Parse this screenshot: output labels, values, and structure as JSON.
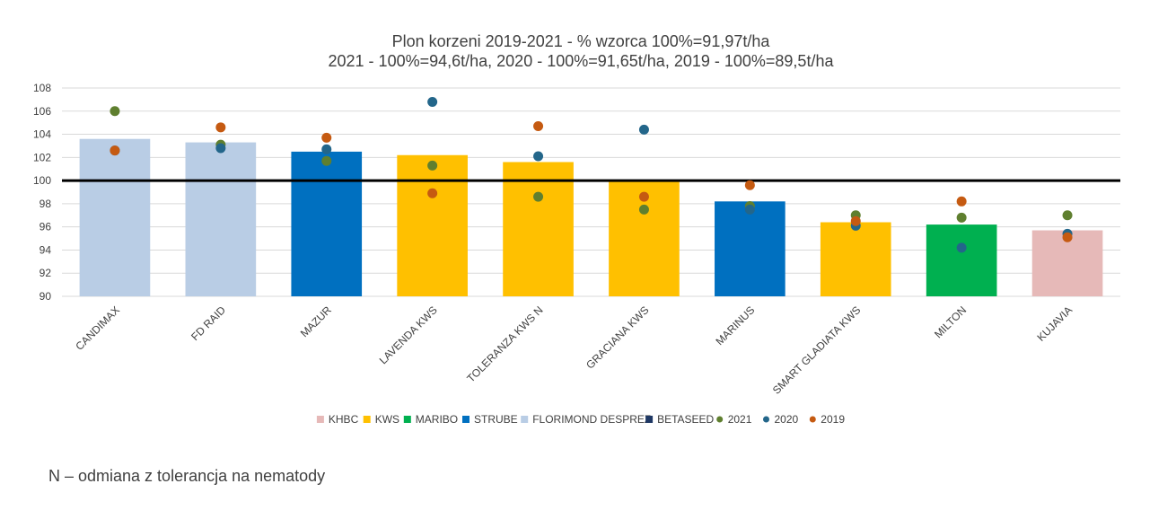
{
  "chart_data": {
    "type": "bar",
    "title_lines": [
      "Plon korzeni 2019-2021 - % wzorca 100%=91,97t/ha",
      "2021 - 100%=94,6t/ha, 2020 - 100%=91,65t/ha, 2019 - 100%=89,5t/ha"
    ],
    "categories": [
      "CANDIMAX",
      "FD RAID",
      "MAZUR",
      "LAVENDA KWS",
      "TOLERANZA KWS N",
      "GRACIANA KWS",
      "MARINUS",
      "SMART GLADIATA KWS",
      "MILTON",
      "KUJAVIA"
    ],
    "bar_values": [
      103.6,
      103.3,
      102.5,
      102.2,
      101.6,
      100.0,
      98.2,
      96.4,
      96.2,
      95.7
    ],
    "bar_breeders": [
      "FLORIMOND DESPREZ",
      "FLORIMOND DESPREZ",
      "STRUBE",
      "KWS",
      "KWS",
      "KWS",
      "STRUBE",
      "KWS",
      "MARIBO",
      "KHBC"
    ],
    "breeder_colors": {
      "KHBC": "#e6b9b8",
      "KWS": "#ffc000",
      "MARIBO": "#00b050",
      "STRUBE": "#0070c0",
      "FLORIMOND DESPREZ": "#b9cde5",
      "BETASEED": "#1f3864"
    },
    "points": [
      {
        "name": "2021",
        "color": "#5f7f2f",
        "values": [
          106.0,
          103.1,
          101.7,
          101.3,
          98.6,
          97.5,
          97.8,
          97.0,
          96.8,
          97.0
        ]
      },
      {
        "name": "2020",
        "color": "#23668a",
        "values": [
          102.6,
          102.8,
          102.7,
          106.8,
          102.1,
          104.4,
          97.5,
          96.1,
          94.2,
          95.4
        ]
      },
      {
        "name": "2019",
        "color": "#c55a11",
        "values": [
          102.6,
          104.6,
          103.7,
          98.9,
          104.7,
          98.6,
          99.6,
          96.5,
          98.2,
          95.1
        ]
      }
    ],
    "reference_line": 100,
    "ylim": [
      90,
      108
    ],
    "yticks": [
      90,
      92,
      94,
      96,
      98,
      100,
      102,
      104,
      106,
      108
    ],
    "grid": true,
    "legend_position": "bottom",
    "legend": [
      {
        "label": "KHBC",
        "color": "#e6b9b8",
        "marker": "square"
      },
      {
        "label": "KWS",
        "color": "#ffc000",
        "marker": "square"
      },
      {
        "label": "MARIBO",
        "color": "#00b050",
        "marker": "square"
      },
      {
        "label": "STRUBE",
        "color": "#0070c0",
        "marker": "square"
      },
      {
        "label": "FLORIMOND DESPREZ",
        "color": "#b9cde5",
        "marker": "square"
      },
      {
        "label": "BETASEED",
        "color": "#1f3864",
        "marker": "square"
      },
      {
        "label": "2021",
        "color": "#5f7f2f",
        "marker": "circle"
      },
      {
        "label": "2020",
        "color": "#23668a",
        "marker": "circle"
      },
      {
        "label": "2019",
        "color": "#c55a11",
        "marker": "circle"
      }
    ]
  },
  "footnote": "N – odmiana z tolerancja na nematody"
}
